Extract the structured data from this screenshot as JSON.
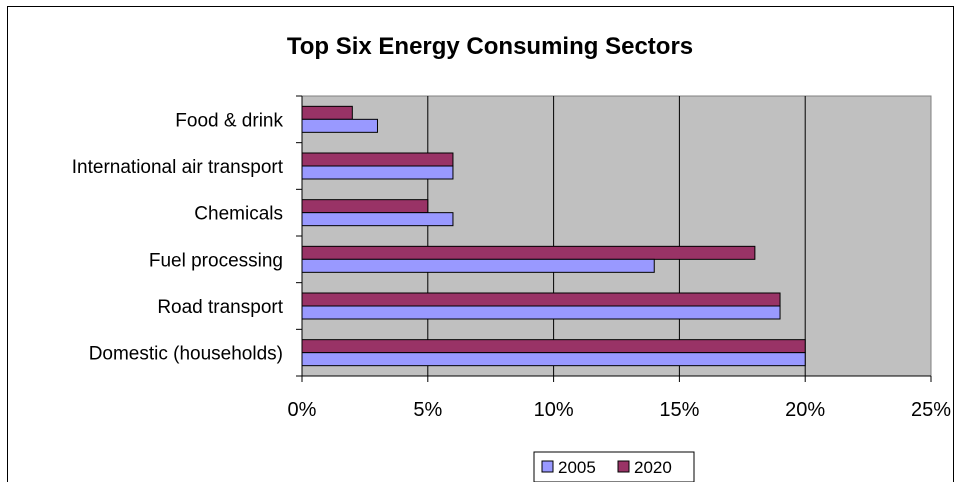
{
  "chart_data": {
    "type": "bar",
    "orientation": "horizontal",
    "title": "Top Six Energy Consuming Sectors",
    "categories": [
      "Domestic (households)",
      "Road transport",
      "Fuel processing",
      "Chemicals",
      "International air transport",
      "Food & drink"
    ],
    "series": [
      {
        "name": "2005",
        "values": [
          20,
          19,
          14,
          6,
          6,
          3
        ],
        "color": "#9999ff"
      },
      {
        "name": "2020",
        "values": [
          20,
          19,
          18,
          5,
          6,
          2
        ],
        "color": "#993366"
      }
    ],
    "value_unit": "%",
    "xlim": [
      0,
      25
    ],
    "x_ticks": [
      "0%",
      "5%",
      "10%",
      "15%",
      "20%",
      "25%"
    ],
    "grid": "vertical",
    "plot_background": "#c0c0c0",
    "legend_position": "bottom"
  }
}
